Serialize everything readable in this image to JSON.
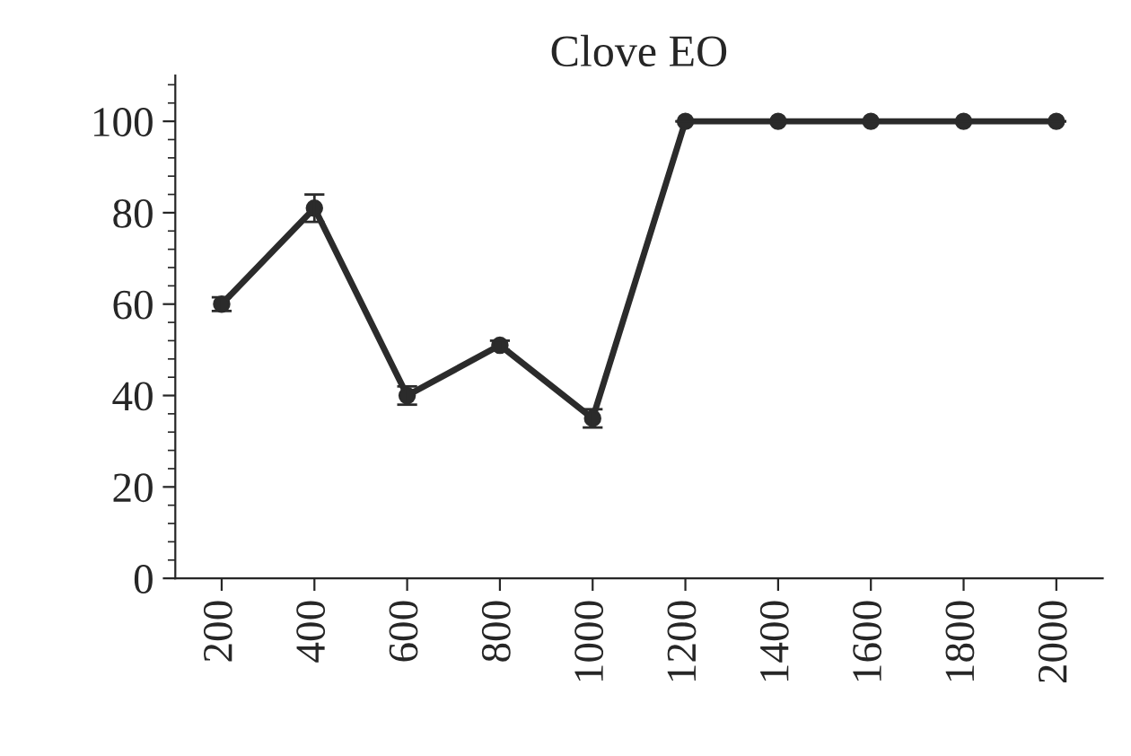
{
  "chart_data": {
    "type": "line",
    "title": "Clove EO",
    "categories": [
      "200",
      "400",
      "600",
      "800",
      "1000",
      "1200",
      "1400",
      "1600",
      "1800",
      "2000"
    ],
    "values": [
      60,
      81,
      40,
      51,
      35,
      100,
      100,
      100,
      100,
      100
    ],
    "errors": [
      1.5,
      3,
      2,
      1,
      2,
      0,
      0,
      0,
      0,
      0
    ],
    "color": "#2b2b2b",
    "marker": "circle",
    "line_style": "solid",
    "ylim": [
      0,
      110
    ],
    "yticks": [
      0,
      20,
      40,
      60,
      80,
      100
    ],
    "grid": false,
    "legend": false
  }
}
